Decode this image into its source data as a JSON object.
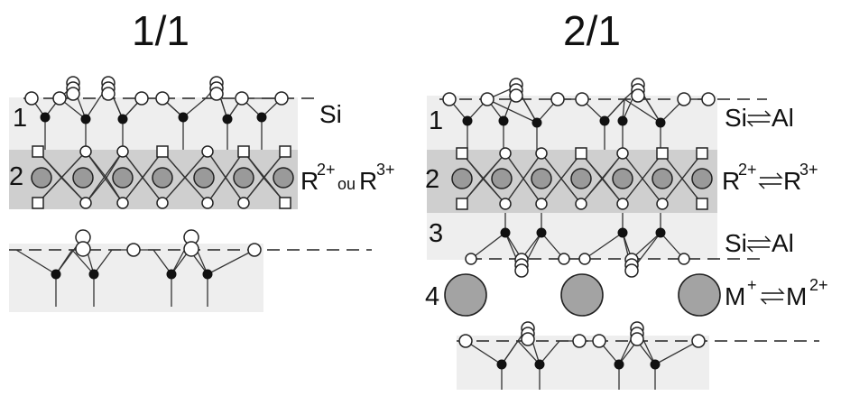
{
  "panels": [
    {
      "title": "1/1",
      "layer_numbers": [
        "1",
        "2"
      ],
      "labels": {
        "tetra": "Si",
        "octa_base": "R",
        "octa_charge_a": "2+",
        "octa_joiner": "ou",
        "octa_base_b": "R",
        "octa_charge_b": "3+"
      }
    },
    {
      "title": "2/1",
      "layer_numbers": [
        "1",
        "2",
        "3",
        "4"
      ],
      "labels": {
        "tetra_top_a": "Si",
        "tetra_top_b": "Al",
        "octa_base_a": "R",
        "octa_charge_a": "2+",
        "octa_base_b": "R",
        "octa_charge_b": "3+",
        "tetra_bottom_a": "Si",
        "tetra_bottom_b": "Al",
        "inter_base_a": "M",
        "inter_charge_a": "+",
        "inter_base_b": "M",
        "inter_charge_b": "2+"
      }
    }
  ],
  "colors": {
    "band_light": "#eeeeee",
    "band_dark": "#cfcfcf",
    "octahedral_cation": "#9a9a9a",
    "interlayer_cation": "#a3a3a3",
    "tetrahedral_cation": "#111111",
    "oxygen": "#ffffff"
  }
}
